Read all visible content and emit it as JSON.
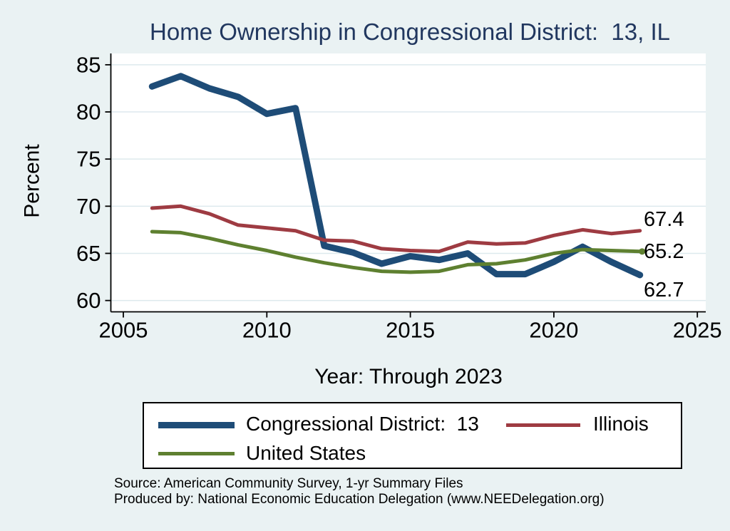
{
  "page": {
    "background": "#eaf2f3",
    "plot_background": "#ffffff",
    "grid_color": "#dde9ed"
  },
  "title": {
    "text": "Home Ownership in Congressional District:  13, IL",
    "color": "#21375f"
  },
  "axes": {
    "y_label": "Percent",
    "x_label": "Year: Through 2023"
  },
  "end_labels": {
    "illinois": "67.4",
    "united_states": "65.2",
    "district_13": "62.7"
  },
  "legend": {
    "items": [
      {
        "label": "Congressional District:  13",
        "color": "#1e4c77"
      },
      {
        "label": "Illinois",
        "color": "#9e3b42"
      },
      {
        "label": "United States",
        "color": "#5e8030"
      }
    ]
  },
  "source": {
    "line1": "Source: American Community Survey, 1-yr Summary Files",
    "line2": "Produced by: National Economic Education Delegation (www.NEEDelegation.org)"
  },
  "chart_data": {
    "type": "line",
    "title": "Home Ownership in Congressional District:  13, IL",
    "xlabel": "Year: Through 2023",
    "ylabel": "Percent",
    "grid": true,
    "legend_position": "bottom",
    "xlim": [
      2005,
      2025
    ],
    "ylim": [
      58.8,
      86.2
    ],
    "x_ticks": [
      2005,
      2010,
      2015,
      2020,
      2025
    ],
    "y_ticks": [
      60,
      65,
      70,
      75,
      80,
      85
    ],
    "x": [
      2006,
      2007,
      2008,
      2009,
      2010,
      2011,
      2012,
      2013,
      2014,
      2015,
      2016,
      2017,
      2018,
      2019,
      2020,
      2021,
      2022,
      2023
    ],
    "series": [
      {
        "name": "Congressional District:  13",
        "color": "#1e4c77",
        "line_width": 9,
        "end_label": "62.7",
        "values": [
          82.7,
          83.8,
          82.5,
          81.6,
          79.8,
          80.4,
          65.8,
          65.1,
          63.9,
          64.7,
          64.3,
          65.0,
          62.8,
          62.8,
          64.1,
          65.7,
          64.1,
          62.7
        ]
      },
      {
        "name": "Illinois",
        "color": "#9e3b42",
        "line_width": 5,
        "end_label": "67.4",
        "values": [
          69.8,
          70.0,
          69.2,
          68.0,
          67.7,
          67.4,
          66.4,
          66.3,
          65.5,
          65.3,
          65.2,
          66.2,
          66.0,
          66.1,
          66.9,
          67.5,
          67.1,
          67.4
        ]
      },
      {
        "name": "United States",
        "color": "#5e8030",
        "line_width": 5,
        "end_dot": true,
        "end_label": "65.2",
        "values": [
          67.3,
          67.2,
          66.6,
          65.9,
          65.3,
          64.6,
          64.0,
          63.5,
          63.1,
          63.0,
          63.1,
          63.8,
          63.9,
          64.3,
          65.0,
          65.4,
          65.3,
          65.2
        ]
      }
    ]
  }
}
